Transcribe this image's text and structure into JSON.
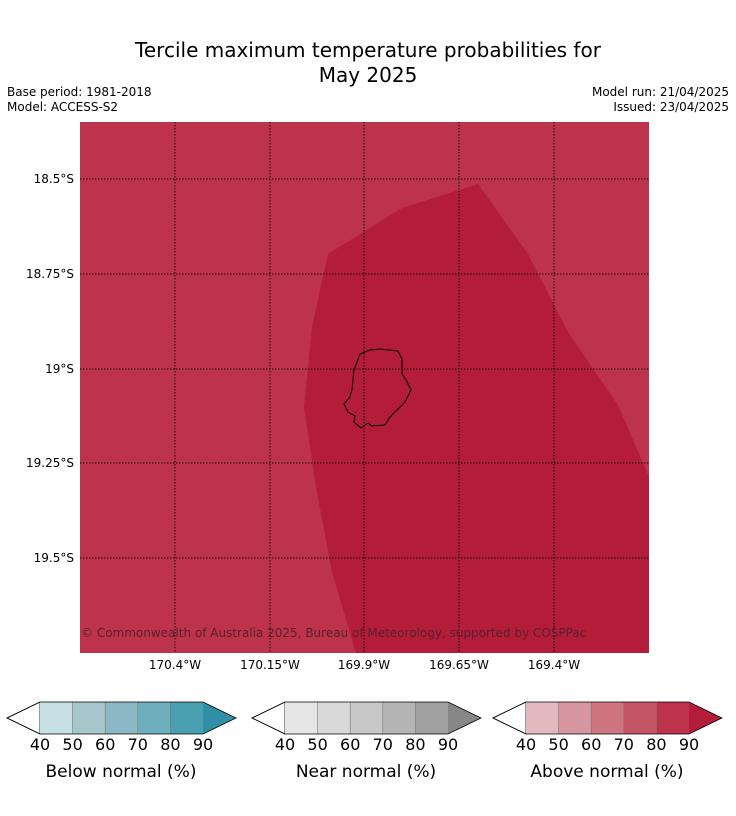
{
  "title_line1": "Tercile maximum temperature probabilities for",
  "title_line2": "May 2025",
  "base_period": "Base period: 1981-2018",
  "model": "Model: ACCESS-S2",
  "model_run": "Model run: 21/04/2025",
  "issued": "Issued: 23/04/2025",
  "map": {
    "lat_labels": [
      "18.5°S",
      "18.75°S",
      "19°S",
      "19.25°S",
      "19.5°S"
    ],
    "lon_labels": [
      "170.4°W",
      "170.15°W",
      "169.9°W",
      "169.65°W",
      "169.4°W"
    ],
    "background_color": "#bd334b",
    "core_color": "#b31d3a",
    "copyright": "© Commonwealth of Australia 2025, Bureau of Meteorology, supported by COSPPac"
  },
  "legends": [
    {
      "title": "Below normal (%)",
      "ticks": [
        "40",
        "50",
        "60",
        "70",
        "80",
        "90"
      ],
      "colors": [
        "#c7e0e6",
        "#a7c6cc",
        "#8bb8c4",
        "#6eafbd",
        "#4a9fb0",
        "#2f8fa5"
      ]
    },
    {
      "title": "Near normal (%)",
      "ticks": [
        "40",
        "50",
        "60",
        "70",
        "80",
        "90"
      ],
      "colors": [
        "#e6e6e6",
        "#d9d9d9",
        "#c8c8c8",
        "#b4b4b4",
        "#a0a0a0",
        "#878787"
      ]
    },
    {
      "title": "Above normal (%)",
      "ticks": [
        "40",
        "50",
        "60",
        "70",
        "80",
        "90"
      ],
      "colors": [
        "#e3b9bf",
        "#d6969f",
        "#ce757f",
        "#c45565",
        "#bd334b",
        "#b31d3a"
      ]
    }
  ]
}
